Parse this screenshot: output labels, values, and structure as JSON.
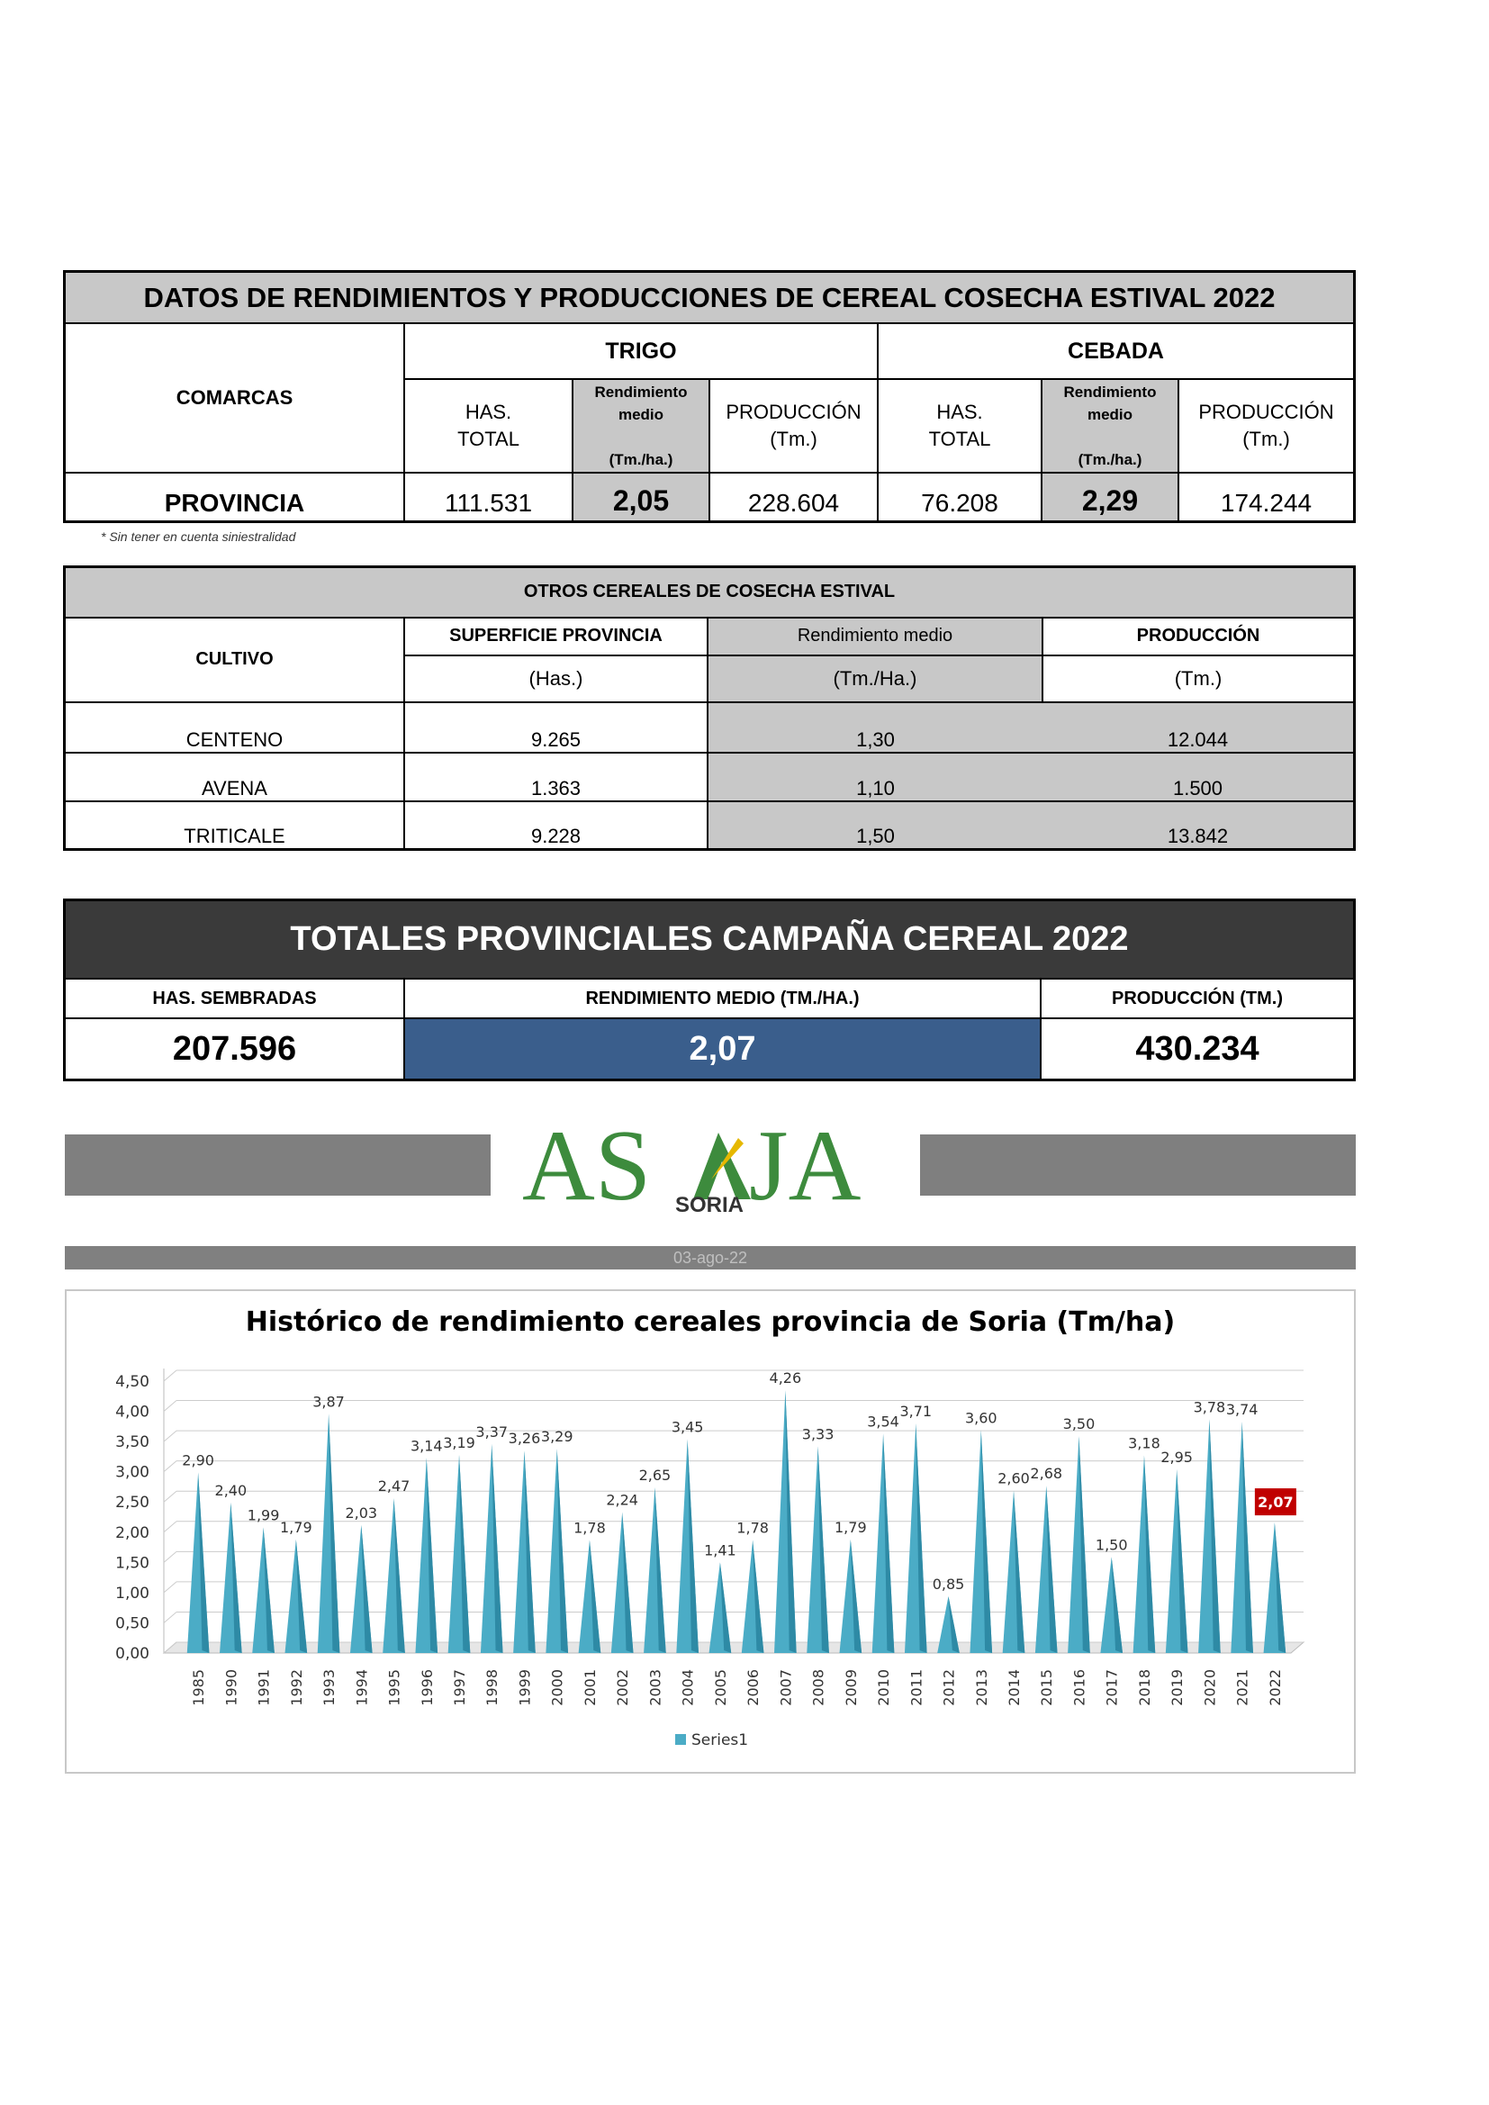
{
  "main_table": {
    "title": "DATOS DE RENDIMIENTOS Y PRODUCCIONES DE CEREAL COSECHA ESTIVAL 2022",
    "comarcas_label": "COMARCAS",
    "trigo_label": "TRIGO",
    "cebada_label": "CEBADA",
    "has_label": "HAS.",
    "total_label": "TOTAL",
    "rend_label_1": "Rendimiento",
    "rend_label_2": "medio",
    "rend_unit": "(Tm./ha.)",
    "prod_label": "PRODUCCIÓN",
    "prod_unit": "(Tm.)",
    "row_label": "PROVINCIA",
    "trigo_has": "111.531",
    "trigo_rend": "2,05",
    "trigo_prod": "228.604",
    "cebada_has": "76.208",
    "cebada_rend": "2,29",
    "cebada_prod": "174.244",
    "note": "* Sin tener en cuenta siniestralidad"
  },
  "otros_table": {
    "title": "OTROS CEREALES DE COSECHA ESTIVAL",
    "cultivo_label": "CULTIVO",
    "sup_label": "SUPERFICIE PROVINCIA",
    "sup_unit": "(Has.)",
    "rend_label": "Rendimiento medio",
    "rend_unit": "(Tm./Ha.)",
    "prod_label": "PRODUCCIÓN",
    "prod_unit": "(Tm.)",
    "rows": [
      {
        "cultivo": "CENTENO",
        "sup": "9.265",
        "rend": "1,30",
        "prod": "12.044"
      },
      {
        "cultivo": "AVENA",
        "sup": "1.363",
        "rend": "1,10",
        "prod": "1.500"
      },
      {
        "cultivo": "TRITICALE",
        "sup": "9.228",
        "rend": "1,50",
        "prod": "13.842"
      }
    ]
  },
  "totales_table": {
    "title": "TOTALES PROVINCIALES CAMPAÑA CEREAL 2022",
    "has_label": "HAS. SEMBRADAS",
    "rend_label": "RENDIMIENTO MEDIO  (TM./HA.)",
    "prod_label": "PRODUCCIÓN (TM.)",
    "has_value": "207.596",
    "rend_value": "2,07",
    "prod_value": "430.234"
  },
  "logo": {
    "text_left": "AS",
    "text_right": "JA",
    "sub": "SORIA",
    "color": "#3d8b3d"
  },
  "date_label": "03-ago-22",
  "chart_data": {
    "type": "bar",
    "title": "Histórico de rendimiento cereales provincia de Soria (Tm/ha)",
    "categories": [
      "1985",
      "1990",
      "1991",
      "1992",
      "1993",
      "1994",
      "1995",
      "1996",
      "1997",
      "1998",
      "1999",
      "2000",
      "2001",
      "2002",
      "2003",
      "2004",
      "2005",
      "2006",
      "2007",
      "2008",
      "2009",
      "2010",
      "2011",
      "2012",
      "2013",
      "2014",
      "2015",
      "2016",
      "2017",
      "2018",
      "2019",
      "2020",
      "2021",
      "2022"
    ],
    "series": [
      {
        "name": "Series1",
        "values": [
          2.9,
          2.4,
          1.99,
          1.79,
          3.87,
          2.03,
          2.47,
          3.14,
          3.19,
          3.37,
          3.26,
          3.29,
          1.78,
          2.24,
          2.65,
          3.45,
          1.41,
          1.78,
          4.26,
          3.33,
          1.79,
          3.54,
          3.71,
          0.85,
          3.6,
          2.6,
          2.68,
          3.5,
          1.5,
          3.18,
          2.95,
          3.78,
          3.74,
          2.07
        ],
        "labels": [
          "2,90",
          "2,40",
          "1,99",
          "1,79",
          "3,87",
          "2,03",
          "2,47",
          "3,14",
          "3,19",
          "3,37",
          "3,26",
          "3,29",
          "1,78",
          "2,24",
          "2,65",
          "3,45",
          "1,41",
          "1,78",
          "4,26",
          "3,33",
          "1,79",
          "3,54",
          "3,71",
          "0,85",
          "3,60",
          "2,60",
          "2,68",
          "3,50",
          "1,50",
          "3,18",
          "2,95",
          "3,78",
          "3,74",
          "2,07"
        ]
      }
    ],
    "yticks": [
      "0,00",
      "0,50",
      "1,00",
      "1,50",
      "2,00",
      "2,50",
      "3,00",
      "3,50",
      "4,00",
      "4,50"
    ],
    "ylim": [
      0,
      4.5
    ],
    "legend": "bottom",
    "bar_color": "#4bacc6",
    "highlight_color": "#c00000",
    "grid": true
  }
}
